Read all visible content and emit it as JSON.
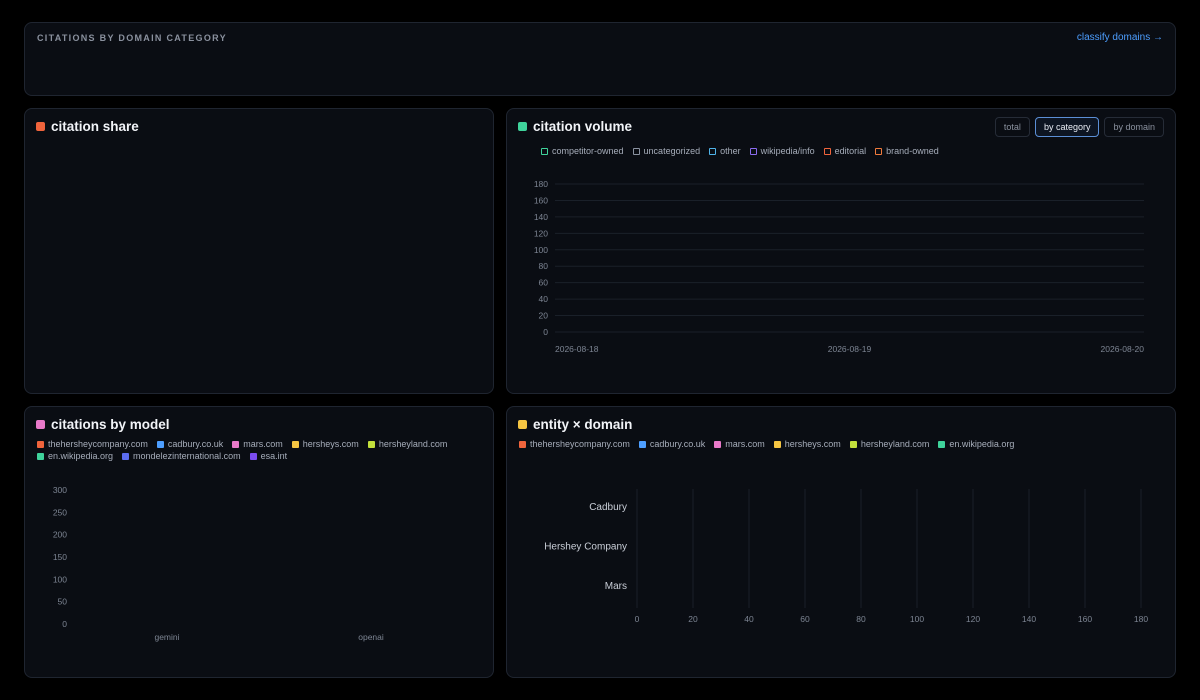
{
  "header": {
    "title": "CITATIONS BY DOMAIN CATEGORY",
    "link": "classify domains →"
  },
  "panels": {
    "share": {
      "title": "citation share",
      "color": "#f0643c"
    },
    "volume": {
      "title": "citation volume",
      "color": "#3fd39b"
    },
    "model": {
      "title": "citations by model",
      "color": "#e879c9"
    },
    "entity": {
      "title": "entity × domain",
      "color": "#f5c542"
    }
  },
  "volume_toggles": [
    {
      "label": "total",
      "active": false
    },
    {
      "label": "by category",
      "active": true
    },
    {
      "label": "by domain",
      "active": false
    }
  ],
  "legends": {
    "volume": [
      {
        "label": "competitor-owned",
        "color": "#3fd39b"
      },
      {
        "label": "uncategorized",
        "color": "#8b93a1"
      },
      {
        "label": "other",
        "color": "#4fb3e8"
      },
      {
        "label": "wikipedia/info",
        "color": "#8b6cf0"
      },
      {
        "label": "editorial",
        "color": "#f0643c"
      },
      {
        "label": "brand-owned",
        "color": "#f07a3c"
      }
    ],
    "model": [
      {
        "label": "thehersheycompany.com",
        "color": "#f0643c"
      },
      {
        "label": "cadbury.co.uk",
        "color": "#4d9eff"
      },
      {
        "label": "mars.com",
        "color": "#e879c9"
      },
      {
        "label": "hersheys.com",
        "color": "#f5c542"
      },
      {
        "label": "hersheyland.com",
        "color": "#c3e03c"
      },
      {
        "label": "en.wikipedia.org",
        "color": "#3fd39b"
      },
      {
        "label": "mondelezinternational.com",
        "color": "#5b6cf0"
      },
      {
        "label": "esa.int",
        "color": "#7b4cf0"
      }
    ],
    "entity": [
      {
        "label": "thehersheycompany.com",
        "color": "#f0643c"
      },
      {
        "label": "cadbury.co.uk",
        "color": "#4d9eff"
      },
      {
        "label": "mars.com",
        "color": "#e879c9"
      },
      {
        "label": "hersheys.com",
        "color": "#f5c542"
      },
      {
        "label": "hersheyland.com",
        "color": "#c3e03c"
      },
      {
        "label": "en.wikipedia.org",
        "color": "#3fd39b"
      }
    ]
  },
  "chart_data": [
    {
      "type": "area",
      "title": "citation volume",
      "x": [
        "2026-08-18",
        "2026-08-19",
        "2026-08-20"
      ],
      "ylim": [
        0,
        180
      ],
      "yticks": [
        0,
        20,
        40,
        60,
        80,
        100,
        120,
        140,
        160,
        180
      ],
      "series": [],
      "grid": true
    },
    {
      "type": "bar",
      "title": "citations by model",
      "categories": [
        "gemini",
        "openai"
      ],
      "ylim": [
        0,
        300
      ],
      "yticks": [
        0,
        50,
        100,
        150,
        200,
        250,
        300
      ],
      "series": []
    },
    {
      "type": "bar",
      "title": "entity × domain",
      "orientation": "horizontal",
      "categories": [
        "Cadbury",
        "Hershey Company",
        "Mars"
      ],
      "xlim": [
        0,
        180
      ],
      "xticks": [
        0,
        20,
        40,
        60,
        80,
        100,
        120,
        140,
        160,
        180
      ],
      "series": [],
      "grid": true
    }
  ]
}
